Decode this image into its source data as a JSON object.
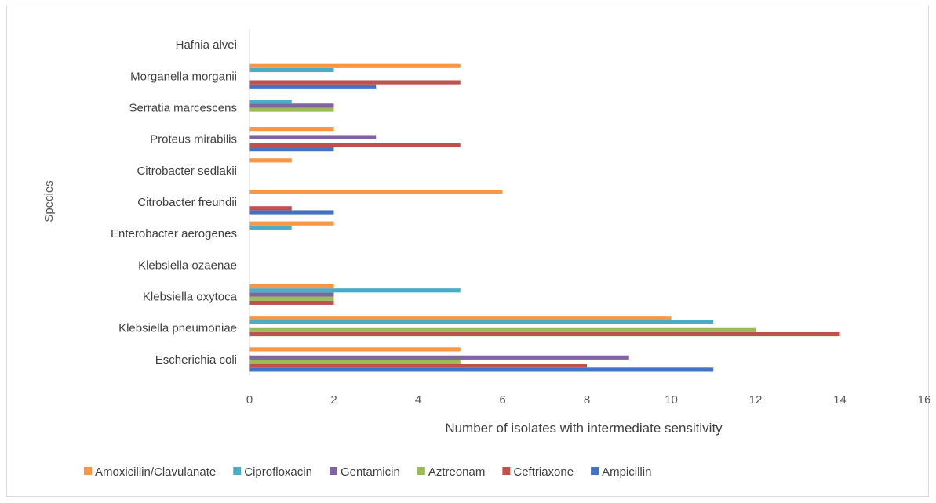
{
  "chart_data": {
    "type": "bar",
    "orientation": "horizontal",
    "xlabel": "Number of isolates with intermediate sensitivity",
    "ylabel": "Species",
    "xlim": [
      0,
      16
    ],
    "xticks": [
      0,
      2,
      4,
      6,
      8,
      10,
      12,
      14,
      16
    ],
    "grid": false,
    "legend_position": "bottom",
    "categories": [
      "Escherichia coli",
      "Klebsiella pneumoniae",
      "Klebsiella oxytoca",
      "Klebsiella ozaenae",
      "Enterobacter aerogenes",
      "Citrobacter freundii",
      "Citrobacter sedlakii",
      "Proteus mirabilis",
      "Serratia marcescens",
      "Morganella morganii",
      "Hafnia alvei"
    ],
    "series": [
      {
        "name": "Ampicillin",
        "color": "#4472c4",
        "values": [
          11,
          0,
          0,
          0,
          0,
          2,
          0,
          2,
          0,
          3,
          0
        ]
      },
      {
        "name": "Ceftriaxone",
        "color": "#c0504d",
        "values": [
          8,
          14,
          2,
          0,
          0,
          1,
          0,
          5,
          0,
          5,
          0
        ]
      },
      {
        "name": "Aztreonam",
        "color": "#9bbb59",
        "values": [
          5,
          12,
          2,
          0,
          0,
          0,
          0,
          0,
          2,
          0,
          0
        ]
      },
      {
        "name": "Gentamicin",
        "color": "#8064a2",
        "values": [
          9,
          0,
          2,
          0,
          0,
          0,
          0,
          3,
          2,
          0,
          0
        ]
      },
      {
        "name": "Ciprofloxacin",
        "color": "#4bacc6",
        "values": [
          0,
          11,
          5,
          0,
          1,
          0,
          0,
          0,
          1,
          2,
          0
        ]
      },
      {
        "name": "Amoxicillin/Clavulanate",
        "color": "#f79646",
        "values": [
          5,
          10,
          2,
          0,
          2,
          6,
          1,
          2,
          0,
          5,
          0
        ]
      }
    ],
    "legend_order": [
      "Amoxicillin/Clavulanate",
      "Ciprofloxacin",
      "Gentamicin",
      "Aztreonam",
      "Ceftriaxone",
      "Ampicillin"
    ]
  }
}
